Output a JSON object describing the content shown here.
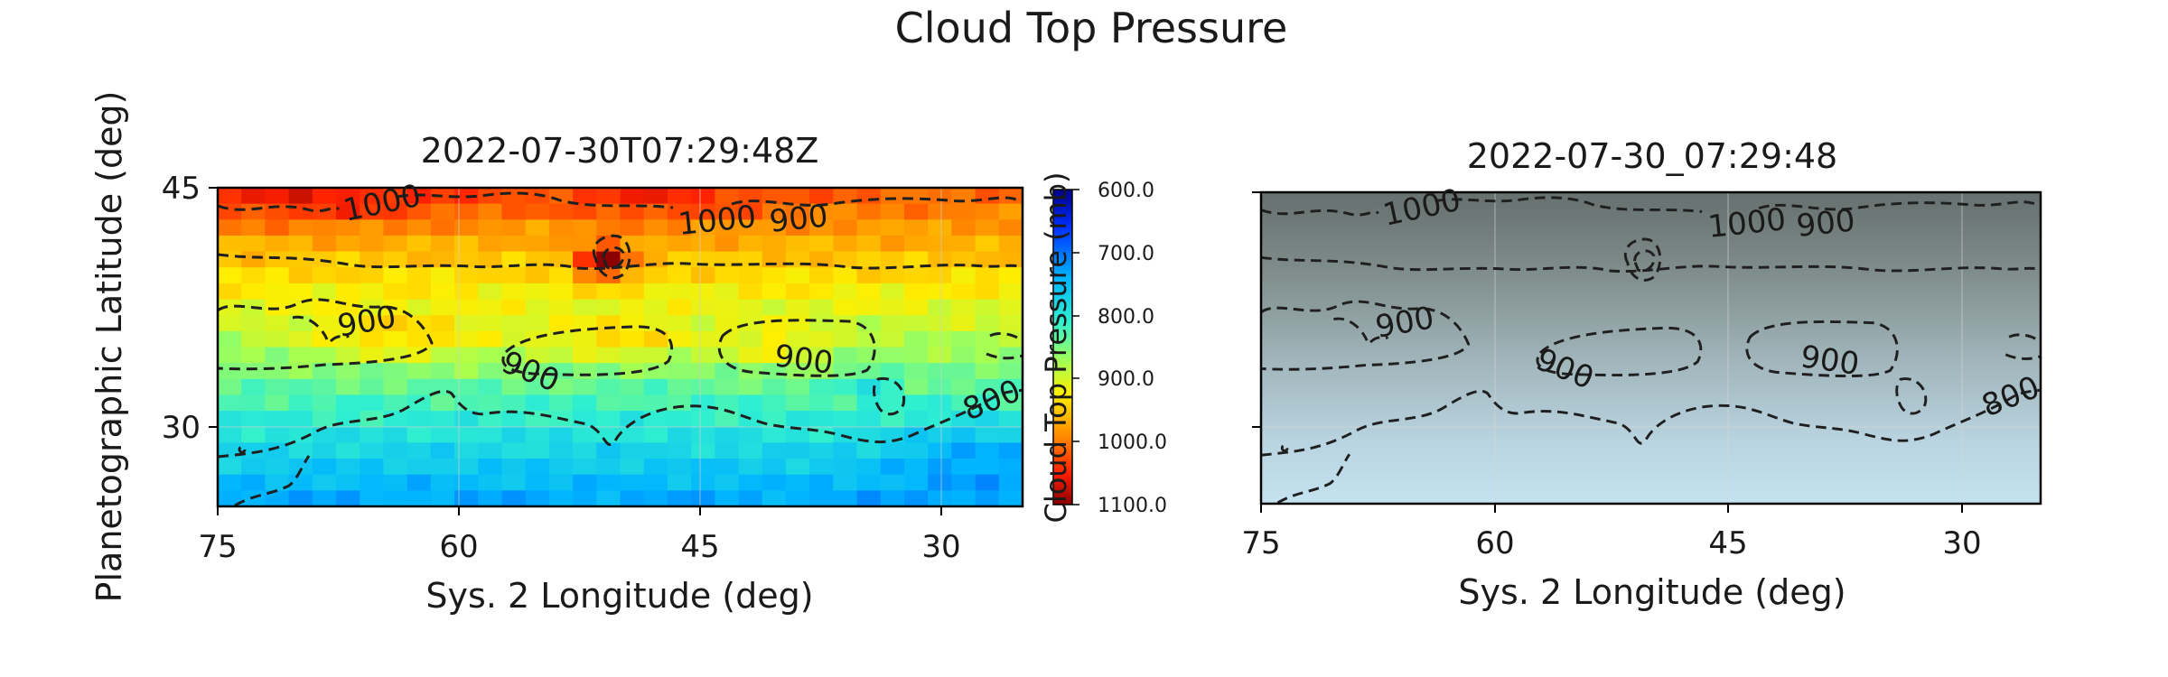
{
  "figure_title": "Cloud Top Pressure",
  "chart_data": [
    {
      "type": "heatmap",
      "title": "2022-07-30T07:29:48Z",
      "xlabel": "Sys. 2 Longitude (deg)",
      "ylabel": "Planetographic Latitude (deg)",
      "xlim": [
        75,
        25
      ],
      "ylim": [
        25,
        45
      ],
      "xticks": [
        75,
        60,
        45,
        30
      ],
      "yticks": [
        30,
        45
      ],
      "colormap": "jet_r",
      "colorbar": {
        "label": "Cloud Top Pressure (mb)",
        "range": [
          600,
          1100
        ],
        "ticks": [
          "600.0",
          "700.0",
          "800.0",
          "900.0",
          "1000.0",
          "1100.0"
        ]
      },
      "contour_levels": [
        800,
        900,
        1000
      ],
      "contour_labels": [
        "1000",
        "1000",
        "900",
        "900",
        "900",
        "900",
        "800"
      ],
      "grid": true
    },
    {
      "type": "heatmap",
      "title": "2022-07-30_07:29:48",
      "xlabel": "Sys. 2 Longitude (deg)",
      "ylabel": "",
      "xlim": [
        75,
        25
      ],
      "ylim": [
        25,
        45
      ],
      "xticks": [
        75,
        60,
        45,
        30
      ],
      "yticks": [
        30,
        45
      ],
      "show_ytick_labels": false,
      "background": "grayscale image (dark grey at top to light blue at bottom)",
      "contour_levels": [
        800,
        900,
        1000
      ],
      "contour_labels": [
        "1000",
        "1000",
        "900",
        "900",
        "900",
        "900",
        "800"
      ],
      "grid": true
    }
  ]
}
